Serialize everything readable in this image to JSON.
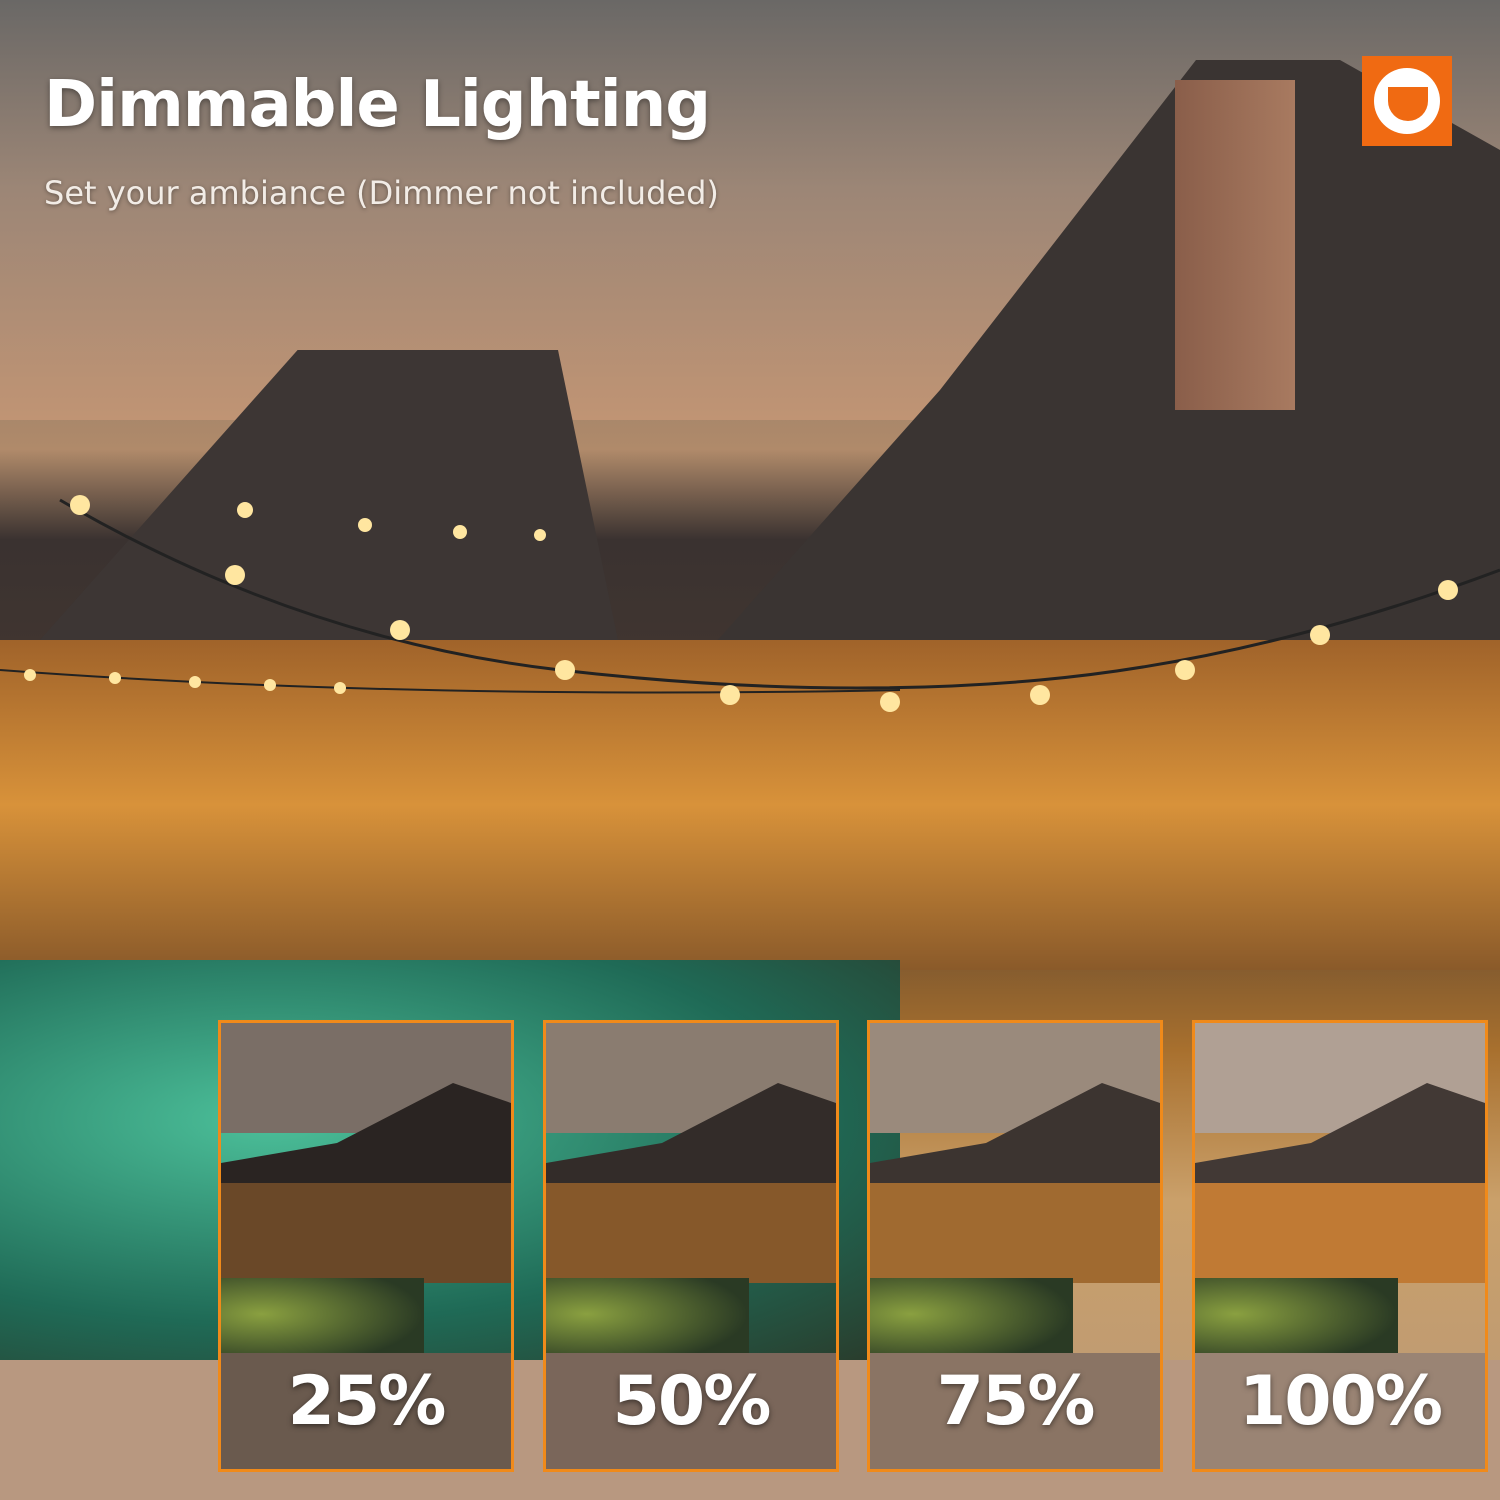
{
  "header": {
    "title": "Dimmable Lighting",
    "subtitle": "Set your ambiance (Dimmer not included)"
  },
  "brand": {
    "logo_icon": "orange-square-ring-logo",
    "accent_color": "#f06a12"
  },
  "panels": [
    {
      "label": "25%",
      "brightness": 25
    },
    {
      "label": "50%",
      "brightness": 50
    },
    {
      "label": "75%",
      "brightness": 75
    },
    {
      "label": "100%",
      "brightness": 100
    }
  ]
}
